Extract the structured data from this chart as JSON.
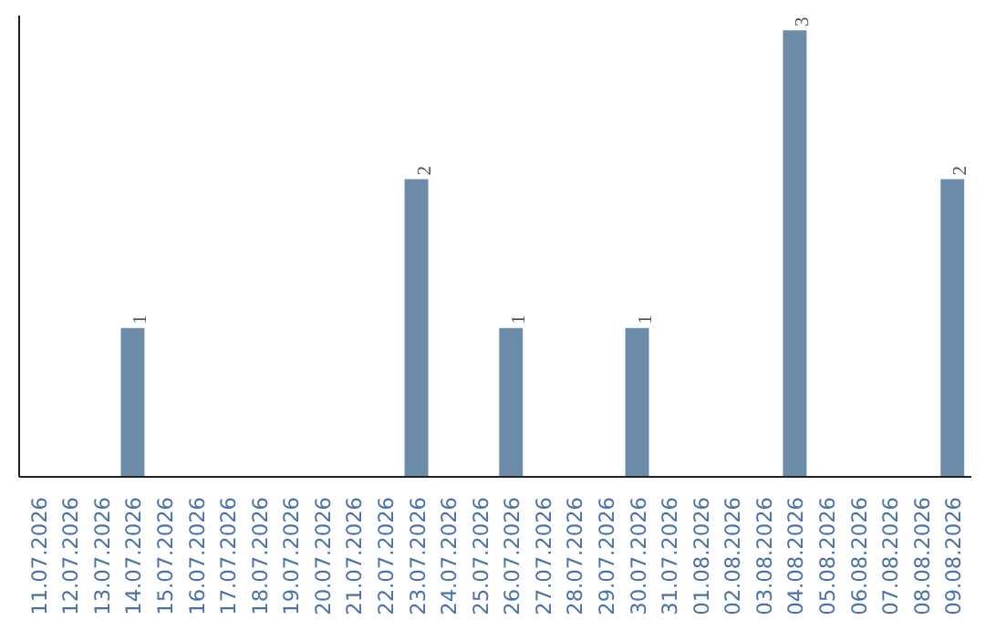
{
  "chart_data": {
    "type": "bar",
    "categories": [
      "11.07.2026",
      "12.07.2026",
      "13.07.2026",
      "14.07.2026",
      "15.07.2026",
      "16.07.2026",
      "17.07.2026",
      "18.07.2026",
      "19.07.2026",
      "20.07.2026",
      "21.07.2026",
      "22.07.2026",
      "23.07.2026",
      "24.07.2026",
      "25.07.2026",
      "26.07.2026",
      "27.07.2026",
      "28.07.2026",
      "29.07.2026",
      "30.07.2026",
      "31.07.2026",
      "01.08.2026",
      "02.08.2026",
      "03.08.2026",
      "04.08.2026",
      "05.08.2026",
      "06.08.2026",
      "07.08.2026",
      "08.08.2026",
      "09.08.2026"
    ],
    "values": [
      0,
      0,
      0,
      1,
      0,
      0,
      0,
      0,
      0,
      0,
      0,
      0,
      2,
      0,
      0,
      1,
      0,
      0,
      0,
      1,
      0,
      0,
      0,
      0,
      3,
      0,
      0,
      0,
      0,
      2
    ],
    "value_labels": [
      null,
      null,
      null,
      "1",
      null,
      null,
      null,
      null,
      null,
      null,
      null,
      null,
      "2",
      null,
      null,
      "1",
      null,
      null,
      null,
      "1",
      null,
      null,
      null,
      null,
      "3",
      null,
      null,
      null,
      null,
      "2"
    ],
    "color": "#6d8caa",
    "ylim": [
      0,
      3.1
    ],
    "tick_labels": "x",
    "grid": false
  }
}
